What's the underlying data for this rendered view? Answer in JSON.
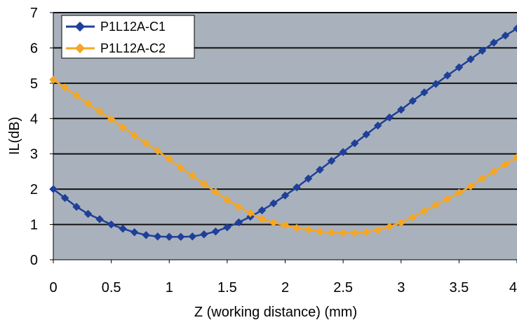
{
  "chart_data": {
    "type": "line",
    "title": "",
    "xlabel": "Z (working distance) (mm)",
    "ylabel": "IL(dB)",
    "xlim": [
      0,
      4
    ],
    "ylim": [
      0,
      7
    ],
    "x_ticks": [
      0,
      0.5,
      1,
      1.5,
      2,
      2.5,
      3,
      3.5,
      4
    ],
    "y_ticks": [
      0,
      1,
      2,
      3,
      4,
      5,
      6,
      7
    ],
    "x_tick_labels": [
      "0",
      "0.5",
      "1",
      "1.5",
      "2",
      "2.5",
      "3",
      "3.5",
      "4"
    ],
    "y_tick_labels": [
      "0",
      "1",
      "2",
      "3",
      "4",
      "5",
      "6",
      "7"
    ],
    "grid": "horizontal",
    "legend_position": "top-left",
    "plot_background": "#a9b2bc",
    "x": [
      0,
      0.1,
      0.2,
      0.3,
      0.4,
      0.5,
      0.6,
      0.7,
      0.8,
      0.9,
      1.0,
      1.1,
      1.2,
      1.3,
      1.4,
      1.5,
      1.6,
      1.7,
      1.8,
      1.9,
      2.0,
      2.1,
      2.2,
      2.3,
      2.4,
      2.5,
      2.6,
      2.7,
      2.8,
      2.9,
      3.0,
      3.1,
      3.2,
      3.3,
      3.4,
      3.5,
      3.6,
      3.7,
      3.8,
      3.9,
      4.0
    ],
    "series": [
      {
        "name": "P1L12A-C1",
        "color": "#1f3f9a",
        "marker": "diamond",
        "values": [
          2.0,
          1.75,
          1.5,
          1.3,
          1.15,
          1.0,
          0.88,
          0.78,
          0.7,
          0.66,
          0.65,
          0.65,
          0.66,
          0.72,
          0.8,
          0.92,
          1.06,
          1.22,
          1.4,
          1.6,
          1.82,
          2.05,
          2.3,
          2.55,
          2.8,
          3.05,
          3.3,
          3.55,
          3.8,
          4.03,
          4.25,
          4.5,
          4.74,
          4.98,
          5.22,
          5.45,
          5.68,
          5.92,
          6.15,
          6.35,
          6.55
        ]
      },
      {
        "name": "P1L12A-C2",
        "color": "#f5a623",
        "marker": "diamond",
        "values": [
          5.1,
          4.88,
          4.65,
          4.42,
          4.2,
          3.98,
          3.75,
          3.52,
          3.3,
          3.08,
          2.85,
          2.6,
          2.38,
          2.15,
          1.92,
          1.7,
          1.5,
          1.32,
          1.15,
          1.05,
          0.98,
          0.9,
          0.85,
          0.8,
          0.77,
          0.76,
          0.76,
          0.78,
          0.84,
          0.94,
          1.05,
          1.2,
          1.38,
          1.55,
          1.72,
          1.9,
          2.08,
          2.3,
          2.5,
          2.7,
          2.9
        ]
      }
    ]
  }
}
